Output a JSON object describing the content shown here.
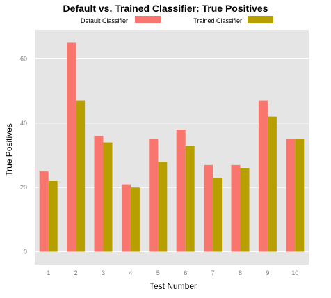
{
  "chart_data": {
    "type": "bar",
    "title": "Default vs. Trained Classifier: True Positives",
    "xlabel": "Test Number",
    "ylabel": "True Positives",
    "categories": [
      "1",
      "2",
      "3",
      "4",
      "5",
      "6",
      "7",
      "8",
      "9",
      "10"
    ],
    "series": [
      {
        "name": "Default Classifier",
        "color": "#f8766d",
        "values": [
          25,
          65,
          36,
          21,
          35,
          38,
          27,
          27,
          47,
          35
        ]
      },
      {
        "name": "Trained Classifier",
        "color": "#b89f00",
        "values": [
          22,
          47,
          34,
          20,
          28,
          33,
          23,
          26,
          42,
          35
        ]
      }
    ],
    "ylim": [
      -4,
      69
    ],
    "yticks": [
      0,
      20,
      40,
      60
    ],
    "grid": true,
    "legend_position": "top",
    "panel_color": "#e5e5e5",
    "gridline_color": "#ffffff"
  }
}
